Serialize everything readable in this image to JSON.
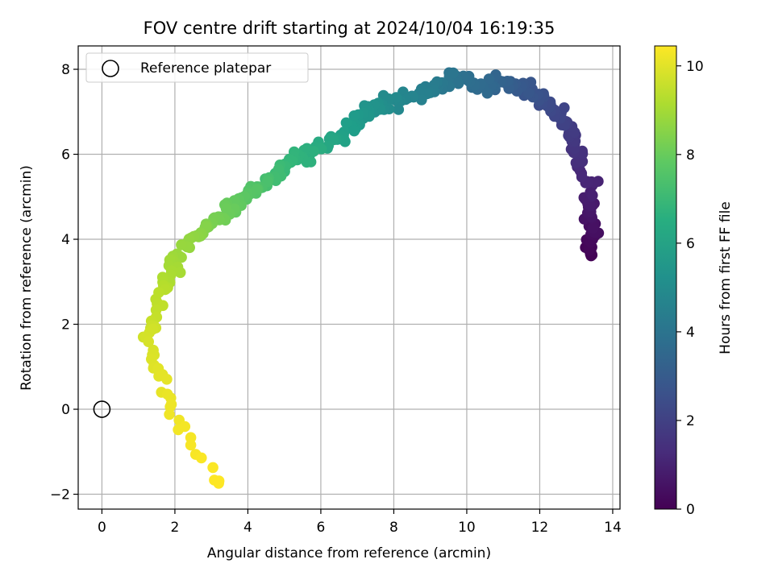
{
  "chart_data": {
    "type": "scatter",
    "title": "FOV centre drift starting at 2024/10/04 16:19:35",
    "xlabel": "Angular distance from reference (arcmin)",
    "ylabel": "Rotation from reference (arcmin)",
    "xlim": [
      -0.65,
      14.2
    ],
    "ylim": [
      -2.35,
      8.55
    ],
    "x_ticks": [
      0,
      2,
      4,
      6,
      8,
      10,
      12,
      14
    ],
    "y_ticks": [
      -2,
      0,
      2,
      4,
      6,
      8
    ],
    "grid": true,
    "legend": {
      "placement": "top-left",
      "entries": [
        "Reference platepar"
      ]
    },
    "reference_point": {
      "name": "Reference platepar",
      "x": 0,
      "y": 0
    },
    "colorbar": {
      "label": "Hours from first FF file",
      "range": [
        0,
        10.45
      ],
      "ticks": [
        0,
        2,
        4,
        6,
        8,
        10
      ],
      "colormap": "viridis"
    },
    "trace": [
      [
        0.0,
        13.3,
        3.6
      ],
      [
        0.2,
        13.4,
        3.9
      ],
      [
        0.4,
        13.5,
        4.2
      ],
      [
        0.6,
        13.4,
        4.6
      ],
      [
        0.8,
        13.3,
        4.9
      ],
      [
        1.0,
        13.4,
        5.3
      ],
      [
        1.2,
        13.2,
        5.6
      ],
      [
        1.4,
        13.1,
        5.9
      ],
      [
        1.6,
        13.0,
        6.2
      ],
      [
        1.8,
        12.8,
        6.5
      ],
      [
        2.0,
        12.6,
        6.8
      ],
      [
        2.2,
        12.5,
        7.0
      ],
      [
        2.4,
        12.2,
        7.2
      ],
      [
        2.6,
        12.0,
        7.4
      ],
      [
        2.8,
        11.7,
        7.5
      ],
      [
        3.0,
        11.3,
        7.6
      ],
      [
        3.2,
        11.0,
        7.7
      ],
      [
        3.4,
        10.7,
        7.7
      ],
      [
        3.6,
        10.4,
        7.6
      ],
      [
        3.8,
        10.0,
        7.7
      ],
      [
        4.0,
        9.7,
        7.8
      ],
      [
        4.2,
        9.3,
        7.6
      ],
      [
        4.4,
        9.0,
        7.5
      ],
      [
        4.6,
        8.6,
        7.4
      ],
      [
        4.8,
        8.3,
        7.3
      ],
      [
        5.0,
        7.9,
        7.2
      ],
      [
        5.2,
        7.6,
        7.1
      ],
      [
        5.4,
        7.3,
        7.1
      ],
      [
        5.6,
        7.0,
        6.8
      ],
      [
        5.8,
        6.8,
        6.6
      ],
      [
        6.0,
        6.5,
        6.4
      ],
      [
        6.2,
        6.2,
        6.3
      ],
      [
        6.4,
        5.9,
        6.1
      ],
      [
        6.6,
        5.6,
        6.0
      ],
      [
        6.8,
        5.3,
        5.9
      ],
      [
        7.0,
        5.0,
        5.7
      ],
      [
        7.2,
        4.7,
        5.5
      ],
      [
        7.4,
        4.4,
        5.3
      ],
      [
        7.6,
        4.1,
        5.1
      ],
      [
        7.8,
        3.8,
        4.9
      ],
      [
        8.0,
        3.5,
        4.7
      ],
      [
        8.2,
        3.2,
        4.5
      ],
      [
        8.4,
        2.9,
        4.3
      ],
      [
        8.6,
        2.6,
        4.1
      ],
      [
        8.8,
        2.3,
        3.8
      ],
      [
        9.0,
        2.0,
        3.4
      ],
      [
        9.2,
        1.8,
        3.0
      ],
      [
        9.4,
        1.6,
        2.6
      ],
      [
        9.6,
        1.4,
        2.1
      ],
      [
        9.8,
        1.3,
        1.6
      ],
      [
        10.0,
        1.5,
        1.0
      ],
      [
        10.1,
        1.7,
        0.5
      ],
      [
        10.2,
        1.9,
        0.0
      ],
      [
        10.3,
        2.2,
        -0.5
      ],
      [
        10.35,
        2.5,
        -0.9
      ],
      [
        10.4,
        2.8,
        -1.2
      ],
      [
        10.45,
        3.1,
        -1.6
      ],
      [
        10.5,
        3.3,
        -1.8
      ]
    ]
  }
}
